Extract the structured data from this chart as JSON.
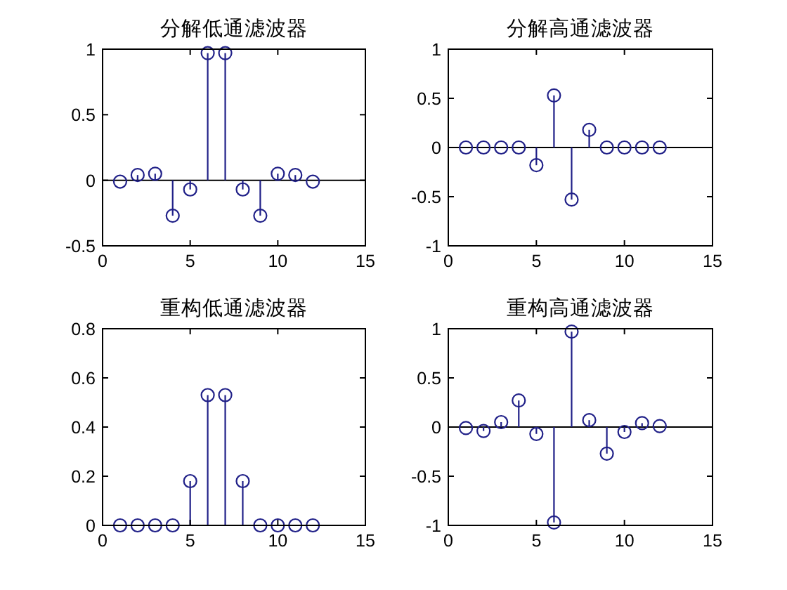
{
  "chart_data": [
    {
      "type": "lollipop",
      "title": "分解低通滤波器",
      "x": [
        1,
        2,
        3,
        4,
        5,
        6,
        7,
        8,
        9,
        10,
        11,
        12
      ],
      "values": [
        -0.01,
        0.04,
        0.05,
        -0.27,
        -0.07,
        0.97,
        0.97,
        -0.07,
        -0.27,
        0.05,
        0.04,
        -0.01
      ],
      "color": "#202088",
      "marker": "circle",
      "xlim": [
        0,
        15
      ],
      "xticks": [
        0,
        5,
        10,
        15
      ],
      "ylim": [
        -0.5,
        1
      ],
      "yticks": [
        -0.5,
        0,
        0.5,
        1
      ],
      "ref_lines": [
        {
          "axis": "y",
          "value": 0,
          "color": "#000000"
        }
      ]
    },
    {
      "type": "lollipop",
      "title": "分解高通滤波器",
      "x": [
        1,
        2,
        3,
        4,
        5,
        6,
        7,
        8,
        9,
        10,
        11,
        12
      ],
      "values": [
        0,
        0,
        0,
        0,
        -0.18,
        0.53,
        -0.53,
        0.18,
        0,
        0,
        0,
        0
      ],
      "color": "#202088",
      "marker": "circle",
      "xlim": [
        0,
        15
      ],
      "xticks": [
        0,
        5,
        10,
        15
      ],
      "ylim": [
        -1,
        1
      ],
      "yticks": [
        -1,
        -0.5,
        0,
        0.5,
        1
      ],
      "ref_lines": [
        {
          "axis": "y",
          "value": 0,
          "color": "#000000"
        }
      ]
    },
    {
      "type": "lollipop",
      "title": "重构低通滤波器",
      "x": [
        1,
        2,
        3,
        4,
        5,
        6,
        7,
        8,
        9,
        10,
        11,
        12
      ],
      "values": [
        0,
        0,
        0,
        0,
        0.18,
        0.53,
        0.53,
        0.18,
        0,
        0,
        0,
        0
      ],
      "color": "#202088",
      "marker": "circle",
      "xlim": [
        0,
        15
      ],
      "xticks": [
        0,
        5,
        10,
        15
      ],
      "ylim": [
        0,
        0.8
      ],
      "yticks": [
        0,
        0.2,
        0.4,
        0.6,
        0.8
      ]
    },
    {
      "type": "lollipop",
      "title": "重构高通滤波器",
      "x": [
        1,
        2,
        3,
        4,
        5,
        6,
        7,
        8,
        9,
        10,
        11,
        12
      ],
      "values": [
        -0.01,
        -0.04,
        0.05,
        0.27,
        -0.07,
        -0.97,
        0.97,
        0.07,
        -0.27,
        -0.05,
        0.04,
        0.01
      ],
      "color": "#202088",
      "marker": "circle",
      "xlim": [
        0,
        15
      ],
      "xticks": [
        0,
        5,
        10,
        15
      ],
      "ylim": [
        -1,
        1
      ],
      "yticks": [
        -1,
        -0.5,
        0,
        0.5,
        1
      ],
      "ref_lines": [
        {
          "axis": "y",
          "value": 0,
          "color": "#000000"
        }
      ]
    }
  ]
}
